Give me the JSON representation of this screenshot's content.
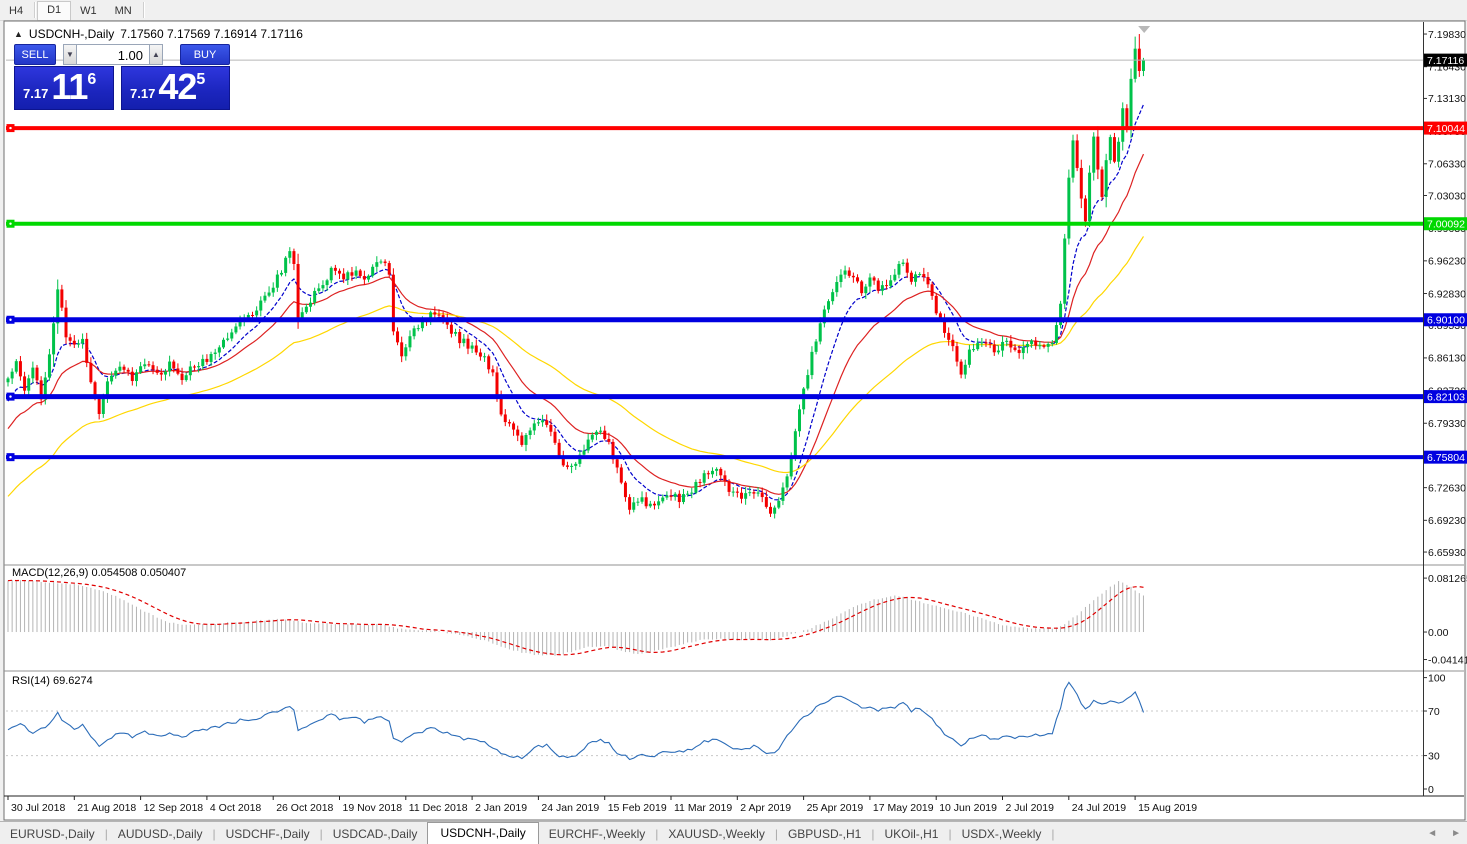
{
  "toolbar": {
    "timeframes": [
      {
        "label": "H4",
        "active": false
      },
      {
        "label": "D1",
        "active": true
      },
      {
        "label": "W1",
        "active": false
      },
      {
        "label": "MN",
        "active": false
      }
    ]
  },
  "header": {
    "collapse_icon": "▲",
    "symbol": "USDCNH-,Daily",
    "ohlc_text": "7.17560 7.17569 7.16914 7.17116",
    "open": "7.17560",
    "high": "7.17569",
    "low": "7.16914",
    "close": "7.17116"
  },
  "trade_panel": {
    "sell_label": "SELL",
    "buy_label": "BUY",
    "volume": "1.00",
    "spinner_down_icon": "▼",
    "spinner_up_icon": "▲",
    "sell_price": {
      "small": "7.17",
      "big": "11",
      "sup": "6"
    },
    "buy_price": {
      "small": "7.17",
      "big": "42",
      "sup": "5"
    }
  },
  "indicators": {
    "macd_label": "MACD(12,26,9) 0.054508 0.050407",
    "rsi_label": "RSI(14) 69.6274"
  },
  "tabs": {
    "items": [
      {
        "label": "EURUSD-,Daily",
        "active": false
      },
      {
        "label": "AUDUSD-,Daily",
        "active": false
      },
      {
        "label": "USDCHF-,Daily",
        "active": false
      },
      {
        "label": "USDCAD-,Daily",
        "active": false
      },
      {
        "label": "USDCNH-,Daily",
        "active": true
      },
      {
        "label": "EURCHF-,Weekly",
        "active": false
      },
      {
        "label": "XAUUSD-,Weekly",
        "active": false
      },
      {
        "label": "GBPUSD-,H1",
        "active": false
      },
      {
        "label": "UKOil-,H1",
        "active": false
      },
      {
        "label": "USDX-,Weekly",
        "active": false
      }
    ],
    "scroll_left_icon": "◄",
    "scroll_right_icon": "►"
  },
  "chart_data": {
    "type": "candlestick",
    "symbol": "USDCNH-",
    "timeframe": "Daily",
    "title": "USDCNH-,Daily",
    "current_price": {
      "label": "7.17116",
      "value": 7.17116
    },
    "bars_total": 275,
    "price_axis": {
      "top_price": 7.2077,
      "bottom_price": 6.6479,
      "ticks": [
        "7.19830",
        "7.16430",
        "7.13130",
        "7.09730",
        "7.06330",
        "7.03030",
        "6.99630",
        "6.96230",
        "6.92830",
        "6.89530",
        "6.86130",
        "6.82730",
        "6.79330",
        "6.75930",
        "6.72630",
        "6.69230",
        "6.65930"
      ]
    },
    "x_ticks": [
      "30 Jul 2018",
      "21 Aug 2018",
      "12 Sep 2018",
      "4 Oct 2018",
      "26 Oct 2018",
      "19 Nov 2018",
      "11 Dec 2018",
      "2 Jan 2019",
      "24 Jan 2019",
      "15 Feb 2019",
      "11 Mar 2019",
      "2 Apr 2019",
      "25 Apr 2019",
      "17 May 2019",
      "10 Jun 2019",
      "2 Jul 2019",
      "24 Jul 2019",
      "15 Aug 2019"
    ],
    "levels": [
      {
        "label": "7.10044",
        "value": 7.10044,
        "color": "#ff0000",
        "width": 4
      },
      {
        "label": "7.00092",
        "value": 7.00092,
        "color": "#00d800",
        "width": 4
      },
      {
        "label": "6.90100",
        "value": 6.901,
        "color": "#0000e0",
        "width": 5
      },
      {
        "label": "6.82103",
        "value": 6.82103,
        "color": "#0000e0",
        "width": 5
      },
      {
        "label": "6.75804",
        "value": 6.75804,
        "color": "#0000e0",
        "width": 4
      }
    ],
    "close_anchors": [
      [
        0,
        6.838
      ],
      [
        2,
        6.856
      ],
      [
        4,
        6.83
      ],
      [
        6,
        6.848
      ],
      [
        8,
        6.82
      ],
      [
        10,
        6.862
      ],
      [
        12,
        6.934
      ],
      [
        14,
        6.886
      ],
      [
        16,
        6.872
      ],
      [
        18,
        6.88
      ],
      [
        20,
        6.84
      ],
      [
        22,
        6.806
      ],
      [
        24,
        6.834
      ],
      [
        27,
        6.85
      ],
      [
        30,
        6.84
      ],
      [
        33,
        6.858
      ],
      [
        36,
        6.842
      ],
      [
        39,
        6.854
      ],
      [
        42,
        6.84
      ],
      [
        45,
        6.854
      ],
      [
        48,
        6.86
      ],
      [
        51,
        6.874
      ],
      [
        54,
        6.89
      ],
      [
        57,
        6.9
      ],
      [
        60,
        6.912
      ],
      [
        63,
        6.93
      ],
      [
        66,
        6.952
      ],
      [
        68,
        6.974
      ],
      [
        69,
        6.958
      ],
      [
        70,
        6.898
      ],
      [
        72,
        6.916
      ],
      [
        75,
        6.934
      ],
      [
        78,
        6.952
      ],
      [
        81,
        6.944
      ],
      [
        84,
        6.952
      ],
      [
        86,
        6.94
      ],
      [
        88,
        6.954
      ],
      [
        90,
        6.964
      ],
      [
        92,
        6.95
      ],
      [
        93,
        6.886
      ],
      [
        95,
        6.862
      ],
      [
        97,
        6.884
      ],
      [
        100,
        6.9
      ],
      [
        103,
        6.91
      ],
      [
        106,
        6.894
      ],
      [
        109,
        6.88
      ],
      [
        112,
        6.872
      ],
      [
        115,
        6.86
      ],
      [
        117,
        6.844
      ],
      [
        119,
        6.804
      ],
      [
        121,
        6.79
      ],
      [
        124,
        6.774
      ],
      [
        127,
        6.79
      ],
      [
        130,
        6.794
      ],
      [
        133,
        6.76
      ],
      [
        135,
        6.744
      ],
      [
        137,
        6.75
      ],
      [
        140,
        6.774
      ],
      [
        143,
        6.784
      ],
      [
        145,
        6.774
      ],
      [
        147,
        6.744
      ],
      [
        150,
        6.704
      ],
      [
        153,
        6.714
      ],
      [
        156,
        6.704
      ],
      [
        159,
        6.72
      ],
      [
        162,
        6.714
      ],
      [
        165,
        6.724
      ],
      [
        168,
        6.74
      ],
      [
        171,
        6.744
      ],
      [
        174,
        6.724
      ],
      [
        177,
        6.714
      ],
      [
        180,
        6.724
      ],
      [
        182,
        6.714
      ],
      [
        184,
        6.7
      ],
      [
        186,
        6.714
      ],
      [
        188,
        6.74
      ],
      [
        190,
        6.786
      ],
      [
        192,
        6.826
      ],
      [
        194,
        6.866
      ],
      [
        196,
        6.898
      ],
      [
        198,
        6.924
      ],
      [
        200,
        6.94
      ],
      [
        202,
        6.95
      ],
      [
        204,
        6.942
      ],
      [
        206,
        6.932
      ],
      [
        208,
        6.944
      ],
      [
        210,
        6.934
      ],
      [
        212,
        6.94
      ],
      [
        214,
        6.95
      ],
      [
        216,
        6.962
      ],
      [
        218,
        6.944
      ],
      [
        220,
        6.952
      ],
      [
        222,
        6.936
      ],
      [
        224,
        6.91
      ],
      [
        226,
        6.888
      ],
      [
        228,
        6.872
      ],
      [
        230,
        6.846
      ],
      [
        232,
        6.87
      ],
      [
        235,
        6.876
      ],
      [
        238,
        6.87
      ],
      [
        241,
        6.876
      ],
      [
        244,
        6.87
      ],
      [
        247,
        6.876
      ],
      [
        250,
        6.87
      ],
      [
        252,
        6.878
      ],
      [
        254,
        6.92
      ],
      [
        255,
        6.985
      ],
      [
        256,
        7.05
      ],
      [
        257,
        7.09
      ],
      [
        258,
        7.06
      ],
      [
        259,
        7.03
      ],
      [
        260,
        7.0
      ],
      [
        261,
        7.055
      ],
      [
        262,
        7.09
      ],
      [
        263,
        7.06
      ],
      [
        264,
        7.03
      ],
      [
        265,
        7.065
      ],
      [
        266,
        7.09
      ],
      [
        267,
        7.065
      ],
      [
        268,
        7.09
      ],
      [
        269,
        7.125
      ],
      [
        270,
        7.1
      ],
      [
        271,
        7.15
      ],
      [
        272,
        7.182
      ],
      [
        273,
        7.162
      ],
      [
        274,
        7.17116
      ]
    ],
    "moving_averages": [
      {
        "period": 10,
        "color": "#0000cc",
        "dash": "4 2"
      },
      {
        "period": 21,
        "color": "#dd2222",
        "dash": ""
      },
      {
        "period": 55,
        "color": "#ffd700",
        "dash": ""
      }
    ],
    "macd": {
      "name": "MACD(12,26,9)",
      "main_value": 0.054508,
      "signal_value": 0.050407,
      "axis_ticks": [
        {
          "label": "0.081265",
          "value": 0.081265
        },
        {
          "label": "0.00",
          "value": 0
        },
        {
          "label": "-0.041412",
          "value": -0.041412
        }
      ],
      "range": {
        "top": 0.098,
        "bottom": -0.0557
      },
      "hist_anchors": [
        [
          0,
          0.078
        ],
        [
          8,
          0.076
        ],
        [
          16,
          0.072
        ],
        [
          22,
          0.064
        ],
        [
          26,
          0.054
        ],
        [
          30,
          0.042
        ],
        [
          34,
          0.028
        ],
        [
          38,
          0.016
        ],
        [
          42,
          0.011
        ],
        [
          46,
          0.011
        ],
        [
          50,
          0.013
        ],
        [
          55,
          0.015
        ],
        [
          60,
          0.017
        ],
        [
          65,
          0.019
        ],
        [
          68,
          0.02
        ],
        [
          71,
          0.014
        ],
        [
          75,
          0.013
        ],
        [
          80,
          0.012
        ],
        [
          85,
          0.011
        ],
        [
          90,
          0.012
        ],
        [
          93,
          0.007
        ],
        [
          96,
          0.004
        ],
        [
          100,
          0.003
        ],
        [
          104,
          0.001
        ],
        [
          108,
          -0.003
        ],
        [
          112,
          -0.008
        ],
        [
          116,
          -0.014
        ],
        [
          120,
          -0.024
        ],
        [
          124,
          -0.031
        ],
        [
          128,
          -0.035
        ],
        [
          132,
          -0.035
        ],
        [
          136,
          -0.03
        ],
        [
          140,
          -0.022
        ],
        [
          144,
          -0.021
        ],
        [
          148,
          -0.028
        ],
        [
          152,
          -0.033
        ],
        [
          156,
          -0.029
        ],
        [
          160,
          -0.023
        ],
        [
          164,
          -0.016
        ],
        [
          168,
          -0.011
        ],
        [
          172,
          -0.01
        ],
        [
          176,
          -0.012
        ],
        [
          180,
          -0.01
        ],
        [
          184,
          -0.012
        ],
        [
          188,
          -0.006
        ],
        [
          192,
          0.002
        ],
        [
          196,
          0.012
        ],
        [
          200,
          0.024
        ],
        [
          204,
          0.037
        ],
        [
          208,
          0.047
        ],
        [
          212,
          0.053
        ],
        [
          214,
          0.055
        ],
        [
          216,
          0.053
        ],
        [
          220,
          0.046
        ],
        [
          224,
          0.039
        ],
        [
          228,
          0.033
        ],
        [
          232,
          0.026
        ],
        [
          236,
          0.018
        ],
        [
          240,
          0.011
        ],
        [
          244,
          0.007
        ],
        [
          248,
          0.005
        ],
        [
          252,
          0.005
        ],
        [
          255,
          0.012
        ],
        [
          258,
          0.026
        ],
        [
          261,
          0.043
        ],
        [
          264,
          0.058
        ],
        [
          266,
          0.068
        ],
        [
          268,
          0.076
        ],
        [
          270,
          0.072
        ],
        [
          272,
          0.063
        ],
        [
          274,
          0.0545
        ]
      ]
    },
    "rsi": {
      "name": "RSI(14)",
      "current_value": 69.6274,
      "axis_ticks": [
        {
          "label": "100",
          "value": 100
        },
        {
          "label": "70",
          "value": 70
        },
        {
          "label": "30",
          "value": 30
        },
        {
          "label": "0",
          "value": 0
        }
      ],
      "levels": [
        70,
        30
      ],
      "anchors": [
        [
          0,
          52
        ],
        [
          3,
          58
        ],
        [
          6,
          50
        ],
        [
          9,
          56
        ],
        [
          12,
          68
        ],
        [
          14,
          58
        ],
        [
          16,
          55
        ],
        [
          18,
          57
        ],
        [
          20,
          48
        ],
        [
          22,
          39
        ],
        [
          24,
          45
        ],
        [
          27,
          50
        ],
        [
          30,
          47
        ],
        [
          33,
          52
        ],
        [
          36,
          47
        ],
        [
          39,
          51
        ],
        [
          42,
          46
        ],
        [
          45,
          51
        ],
        [
          48,
          53
        ],
        [
          51,
          56
        ],
        [
          54,
          60
        ],
        [
          57,
          62
        ],
        [
          60,
          64
        ],
        [
          63,
          67
        ],
        [
          66,
          71
        ],
        [
          68,
          74
        ],
        [
          69,
          70
        ],
        [
          70,
          52
        ],
        [
          72,
          57
        ],
        [
          75,
          62
        ],
        [
          78,
          66
        ],
        [
          81,
          62
        ],
        [
          84,
          64
        ],
        [
          86,
          60
        ],
        [
          88,
          64
        ],
        [
          90,
          66
        ],
        [
          92,
          62
        ],
        [
          93,
          46
        ],
        [
          95,
          41
        ],
        [
          97,
          47
        ],
        [
          100,
          52
        ],
        [
          103,
          55
        ],
        [
          106,
          50
        ],
        [
          109,
          46
        ],
        [
          112,
          44
        ],
        [
          115,
          41
        ],
        [
          117,
          38
        ],
        [
          119,
          32
        ],
        [
          121,
          30
        ],
        [
          124,
          28
        ],
        [
          127,
          37
        ],
        [
          130,
          40
        ],
        [
          133,
          30
        ],
        [
          135,
          27
        ],
        [
          137,
          30
        ],
        [
          140,
          40
        ],
        [
          143,
          44
        ],
        [
          145,
          41
        ],
        [
          147,
          33
        ],
        [
          150,
          27
        ],
        [
          153,
          31
        ],
        [
          156,
          29
        ],
        [
          159,
          34
        ],
        [
          162,
          33
        ],
        [
          165,
          36
        ],
        [
          168,
          42
        ],
        [
          171,
          44
        ],
        [
          174,
          38
        ],
        [
          177,
          35
        ],
        [
          180,
          38
        ],
        [
          182,
          35
        ],
        [
          184,
          31
        ],
        [
          186,
          36
        ],
        [
          188,
          47
        ],
        [
          190,
          57
        ],
        [
          192,
          64
        ],
        [
          194,
          70
        ],
        [
          196,
          75
        ],
        [
          198,
          79
        ],
        [
          200,
          82
        ],
        [
          202,
          83
        ],
        [
          204,
          78
        ],
        [
          206,
          72
        ],
        [
          208,
          74
        ],
        [
          210,
          70
        ],
        [
          212,
          72
        ],
        [
          214,
          74
        ],
        [
          216,
          77
        ],
        [
          218,
          70
        ],
        [
          220,
          73
        ],
        [
          222,
          66
        ],
        [
          224,
          58
        ],
        [
          226,
          50
        ],
        [
          228,
          45
        ],
        [
          230,
          39
        ],
        [
          232,
          45
        ],
        [
          235,
          48
        ],
        [
          238,
          45
        ],
        [
          241,
          48
        ],
        [
          244,
          46
        ],
        [
          247,
          49
        ],
        [
          250,
          47
        ],
        [
          252,
          51
        ],
        [
          254,
          72
        ],
        [
          255,
          89
        ],
        [
          256,
          95
        ],
        [
          258,
          84
        ],
        [
          260,
          71
        ],
        [
          262,
          80
        ],
        [
          264,
          76
        ],
        [
          266,
          80
        ],
        [
          268,
          77
        ],
        [
          270,
          80
        ],
        [
          272,
          86
        ],
        [
          273,
          78
        ],
        [
          274,
          69.6
        ]
      ]
    },
    "palette": {
      "up": "#00c24a",
      "down": "#f30000",
      "macd_hist": "#b4b4b4",
      "macd_signal": "#e00000",
      "rsi_line": "#2b6cb8",
      "current_line": "#b6b6b6",
      "badge_current": "#000000"
    },
    "render_hints": {
      "seed": 987654321,
      "shift_marker_x_bar": 272
    }
  }
}
